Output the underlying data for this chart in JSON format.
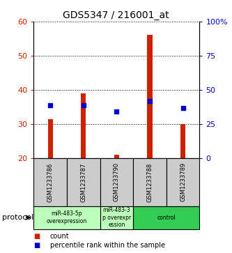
{
  "title": "GDS5347 / 216001_at",
  "samples": [
    "GSM1233786",
    "GSM1233787",
    "GSM1233790",
    "GSM1233788",
    "GSM1233789"
  ],
  "count_values": [
    31.5,
    39.0,
    21.0,
    56.0,
    30.0
  ],
  "percentile_values": [
    38.5,
    38.8,
    34.0,
    42.0,
    36.5
  ],
  "left_ylim": [
    20,
    60
  ],
  "left_yticks": [
    20,
    30,
    40,
    50,
    60
  ],
  "right_ylim": [
    0,
    100
  ],
  "right_yticks": [
    0,
    25,
    50,
    75,
    100
  ],
  "right_yticklabels": [
    "0",
    "25",
    "50",
    "75",
    "100%"
  ],
  "bar_color": "#cc2200",
  "dot_color": "#0000cc",
  "bar_bottom": 20,
  "protocol_groups": [
    {
      "label": "miR-483-5p\noverexpression",
      "start": 0,
      "end": 2,
      "color": "#bbffbb"
    },
    {
      "label": "miR-483-3\np overexpr\nession",
      "start": 2,
      "end": 3,
      "color": "#bbffbb"
    },
    {
      "label": "control",
      "start": 3,
      "end": 5,
      "color": "#33cc55"
    }
  ],
  "protocol_label": "protocol",
  "legend_count_label": "count",
  "legend_percentile_label": "percentile rank within the sample",
  "sample_bg_color": "#cccccc",
  "plot_bg": "#ffffff",
  "left_label_color": "#cc2200",
  "right_label_color": "#0000cc",
  "bar_width": 0.15
}
